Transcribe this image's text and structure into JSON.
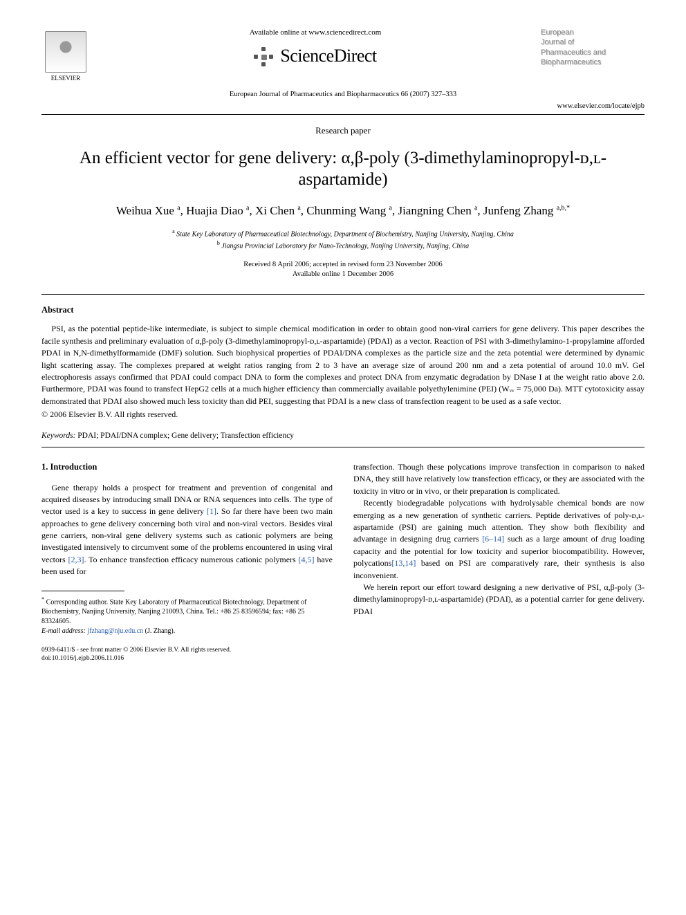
{
  "header": {
    "available_online": "Available online at www.sciencedirect.com",
    "sciencedirect": "ScienceDirect",
    "elsevier_label": "ELSEVIER",
    "journal_box_lines": [
      "European",
      "Journal of",
      "Pharmaceutics and",
      "Biopharmaceutics"
    ],
    "citation": "European Journal of Pharmaceutics and Biopharmaceutics 66 (2007) 327–333",
    "locate": "www.elsevier.com/locate/ejpb"
  },
  "paper": {
    "type": "Research paper",
    "title": "An efficient vector for gene delivery: α,β-poly (3-dimethylaminopropyl-ᴅ,ʟ-aspartamide)",
    "authors_html": "Weihua Xue <sup>a</sup>, Huajia Diao <sup>a</sup>, Xi Chen <sup>a</sup>, Chunming Wang <sup>a</sup>, Jiangning Chen <sup>a</sup>, Junfeng Zhang <sup>a,b,*</sup>",
    "affiliations": {
      "a": "State Key Laboratory of Pharmaceutical Biotechnology, Department of Biochemistry, Nanjing University, Nanjing, China",
      "b": "Jiangsu Provincial Laboratory for Nano-Technology, Nanjing University, Nanjing, China"
    },
    "received": "Received 8 April 2006; accepted in revised form 23 November 2006",
    "available": "Available online 1 December 2006"
  },
  "abstract": {
    "heading": "Abstract",
    "body": "PSI, as the potential peptide-like intermediate, is subject to simple chemical modification in order to obtain good non-viral carriers for gene delivery. This paper describes the facile synthesis and preliminary evaluation of α,β-poly (3-dimethylaminopropyl-ᴅ,ʟ-aspartamide) (PDAI) as a vector. Reaction of PSI with 3-dimethylamino-1-propylamine afforded PDAI in N,N-dimethylformamide (DMF) solution. Such biophysical properties of PDAI/DNA complexes as the particle size and the zeta potential were determined by dynamic light scattering assay. The complexes prepared at weight ratios ranging from 2 to 3 have an average size of around 200 nm and a zeta potential of around 10.0 mV. Gel electrophoresis assays confirmed that PDAI could compact DNA to form the complexes and protect DNA from enzymatic degradation by DNase I at the weight ratio above 2.0. Furthermore, PDAI was found to transfect HepG2 cells at a much higher efficiency than commercially available polyethylenimine (PEI) (Wᵥᵥ = 75,000 Da). MTT cytotoxicity assay demonstrated that PDAI also showed much less toxicity than did PEI, suggesting that PDAI is a new class of transfection reagent to be used as a safe vector.",
    "copyright": "© 2006 Elsevier B.V. All rights reserved."
  },
  "keywords": {
    "label": "Keywords:",
    "list": "PDAI; PDAI/DNA complex; Gene delivery; Transfection efficiency"
  },
  "intro": {
    "heading": "1. Introduction",
    "col1_p1": "Gene therapy holds a prospect for treatment and prevention of congenital and acquired diseases by introducing small DNA or RNA sequences into cells. The type of vector used is a key to success in gene delivery [1]. So far there have been two main approaches to gene delivery concerning both viral and non-viral vectors. Besides viral gene carriers, non-viral gene delivery systems such as cationic polymers are being investigated intensively to circumvent some of the problems encountered in using viral vectors [2,3]. To enhance transfection efficacy numerous cationic polymers [4,5] have been used for",
    "col2_p1": "transfection. Though these polycations improve transfection in comparison to naked DNA, they still have relatively low transfection efficacy, or they are associated with the toxicity in vitro or in vivo, or their preparation is complicated.",
    "col2_p2": "Recently biodegradable polycations with hydrolysable chemical bonds are now emerging as a new generation of synthetic carriers. Peptide derivatives of poly-ᴅ,ʟ-aspartamide (PSI) are gaining much attention. They show both flexibility and advantage in designing drug carriers [6–14] such as a large amount of drug loading capacity and the potential for low toxicity and superior biocompatibility. However, polycations[13,14] based on PSI are comparatively rare, their synthesis is also inconvenient.",
    "col2_p3": "We herein report our effort toward designing a new derivative of PSI, α,β-poly (3-dimethylaminopropyl-ᴅ,ʟ-aspartamide) (PDAI), as a potential carrier for gene delivery. PDAI"
  },
  "footnote": {
    "corresponding": "Corresponding author. State Key Laboratory of Pharmaceutical Biotechnology, Department of Biochemistry, Nanjing University, Nanjing 210093, China. Tel.: +86 25 83596594; fax: +86 25 83324605.",
    "email_label": "E-mail address:",
    "email": "jfzhang@nju.edu.cn",
    "email_author": "(J. Zhang)."
  },
  "footer": {
    "line1": "0939-6411/$ - see front matter © 2006 Elsevier B.V. All rights reserved.",
    "line2": "doi:10.1016/j.ejpb.2006.11.016"
  },
  "refs": {
    "r1": "[1]",
    "r23": "[2,3]",
    "r45": "[4,5]",
    "r614": "[6–14]",
    "r1314": "[13,14]"
  }
}
